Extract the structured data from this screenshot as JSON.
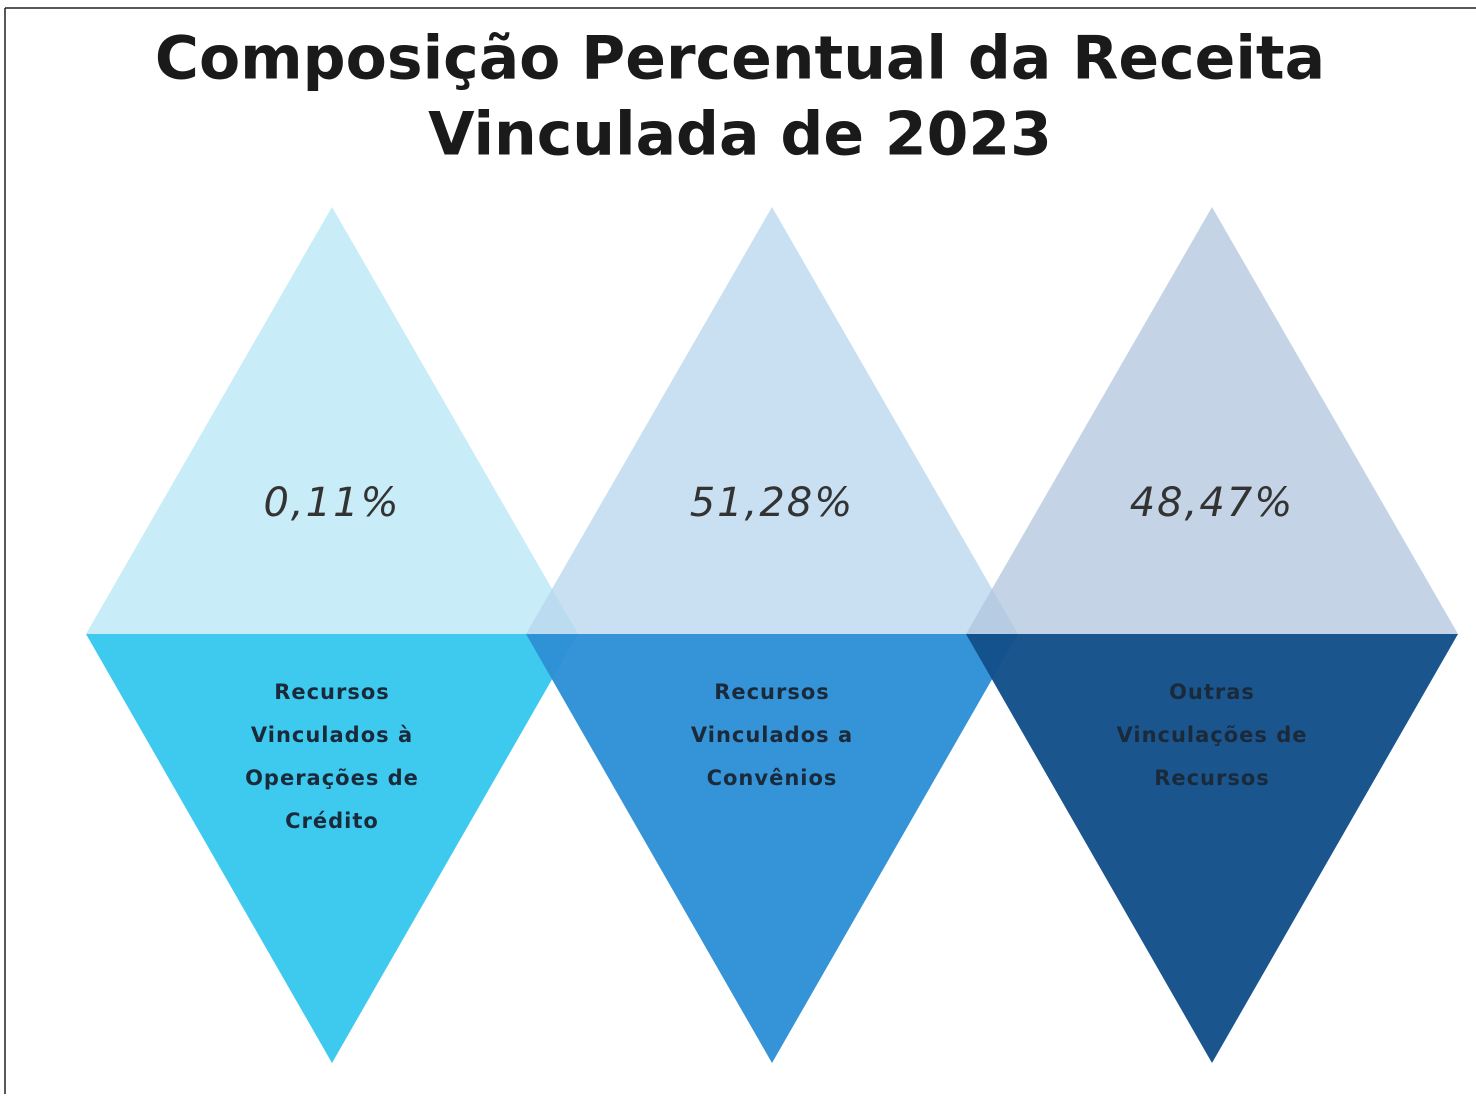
{
  "title": [
    "Composição Percentual da Receita",
    "Vinculada de 2023"
  ],
  "items": [
    {
      "percent": "0,11%",
      "label": [
        "Recursos",
        "Vinculados à",
        "Operações de",
        "Crédito"
      ]
    },
    {
      "percent": "51,28%",
      "label": [
        "Recursos",
        "Vinculados a",
        "Convênios"
      ]
    },
    {
      "percent": "48,47%",
      "label": [
        "Outras",
        "Vinculações de",
        "Recursos"
      ]
    }
  ]
}
